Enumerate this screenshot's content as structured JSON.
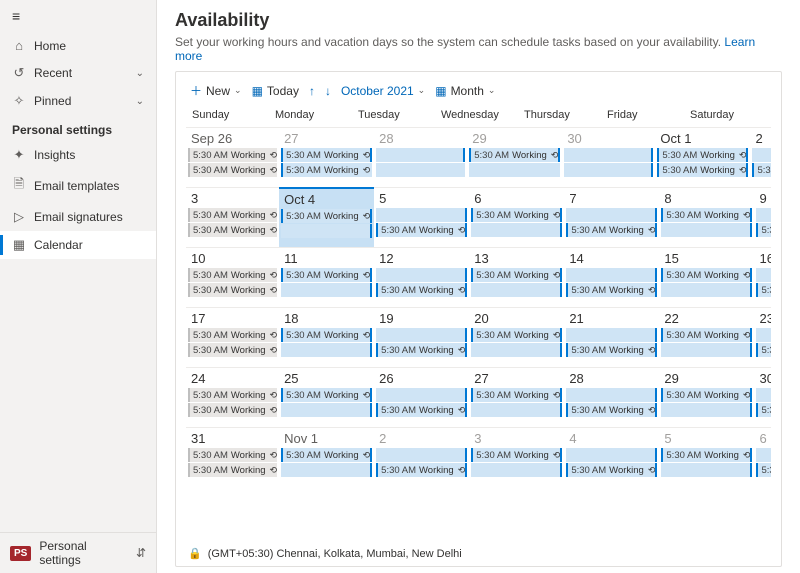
{
  "sidebar": {
    "items": [
      {
        "icon": "⌂",
        "label": "Home",
        "chev": ""
      },
      {
        "icon": "↺",
        "label": "Recent",
        "chev": "⌄"
      },
      {
        "icon": "✧",
        "label": "Pinned",
        "chev": "⌄"
      }
    ],
    "section_label": "Personal settings",
    "personal": [
      {
        "icon": "✦",
        "label": "Insights"
      },
      {
        "icon": "🗎",
        "label": "Email templates"
      },
      {
        "icon": "▷",
        "label": "Email signatures"
      },
      {
        "icon": "▦",
        "label": "Calendar"
      }
    ],
    "active_index": 3,
    "footer": {
      "badge": "PS",
      "label": "Personal settings",
      "updown": "⇵"
    }
  },
  "header": {
    "title": "Availability",
    "subtitle": "Set your working hours and vacation days so the system can schedule tasks based on your availability.",
    "learn_more": "Learn more"
  },
  "toolbar": {
    "new_label": "New",
    "today_label": "Today",
    "period": "October 2021",
    "view_label": "Month"
  },
  "calendar": {
    "dow": [
      "Sunday",
      "Monday",
      "Tuesday",
      "Wednesday",
      "Thursday",
      "Friday",
      "Saturday"
    ],
    "event_time": "5:30 AM",
    "event_label": "Working",
    "recur_glyph": "⟲",
    "weeks": [
      [
        {
          "d": "Sep 26",
          "other": true,
          "rows": [
            [
              "g",
              "s"
            ],
            [
              "g",
              "s"
            ]
          ]
        },
        {
          "d": "27",
          "other": true,
          "rows": [
            [
              "s",
              "e"
            ],
            [
              "s",
              "c"
            ]
          ]
        },
        {
          "d": "28",
          "other": true,
          "rows": [
            [
              "c",
              "e"
            ],
            [
              "c",
              "c"
            ]
          ]
        },
        {
          "d": "29",
          "other": true,
          "rows": [
            [
              "s",
              "e"
            ],
            [
              "c",
              "c"
            ]
          ]
        },
        {
          "d": "30",
          "other": true,
          "rows": [
            [
              "c",
              "e"
            ],
            [
              "c",
              "e"
            ]
          ]
        },
        {
          "d": "Oct 1",
          "rows": [
            [
              "s",
              "e"
            ],
            [
              "s",
              "e"
            ]
          ]
        },
        {
          "d": "2",
          "rows": [
            [
              "c",
              "e"
            ],
            [
              "s",
              "e"
            ]
          ]
        }
      ],
      [
        {
          "d": "3",
          "rows": [
            [
              "g",
              "s"
            ],
            [
              "g",
              "s"
            ]
          ]
        },
        {
          "d": "Oct 4",
          "today": true,
          "rows": [
            [
              "s",
              "e"
            ],
            [
              "c",
              "e"
            ]
          ]
        },
        {
          "d": "5",
          "rows": [
            [
              "c",
              "e"
            ],
            [
              "s",
              "e"
            ]
          ]
        },
        {
          "d": "6",
          "rows": [
            [
              "s",
              "e"
            ],
            [
              "c",
              "e"
            ]
          ]
        },
        {
          "d": "7",
          "rows": [
            [
              "c",
              "e"
            ],
            [
              "s",
              "e"
            ]
          ]
        },
        {
          "d": "8",
          "rows": [
            [
              "s",
              "e"
            ],
            [
              "c",
              "e"
            ]
          ]
        },
        {
          "d": "9",
          "rows": [
            [
              "c",
              "e"
            ],
            [
              "s",
              "e"
            ]
          ]
        }
      ],
      [
        {
          "d": "10",
          "rows": [
            [
              "g",
              "s"
            ],
            [
              "g",
              "s"
            ]
          ]
        },
        {
          "d": "11",
          "rows": [
            [
              "s",
              "e"
            ],
            [
              "c",
              "e"
            ]
          ]
        },
        {
          "d": "12",
          "rows": [
            [
              "c",
              "e"
            ],
            [
              "s",
              "e"
            ]
          ]
        },
        {
          "d": "13",
          "rows": [
            [
              "s",
              "e"
            ],
            [
              "c",
              "e"
            ]
          ]
        },
        {
          "d": "14",
          "rows": [
            [
              "c",
              "e"
            ],
            [
              "s",
              "e"
            ]
          ]
        },
        {
          "d": "15",
          "rows": [
            [
              "s",
              "e"
            ],
            [
              "c",
              "e"
            ]
          ]
        },
        {
          "d": "16",
          "rows": [
            [
              "c",
              "e"
            ],
            [
              "s",
              "e"
            ]
          ]
        }
      ],
      [
        {
          "d": "17",
          "rows": [
            [
              "g",
              "s"
            ],
            [
              "g",
              "s"
            ]
          ]
        },
        {
          "d": "18",
          "rows": [
            [
              "s",
              "e"
            ],
            [
              "c",
              "e"
            ]
          ]
        },
        {
          "d": "19",
          "rows": [
            [
              "c",
              "e"
            ],
            [
              "s",
              "e"
            ]
          ]
        },
        {
          "d": "20",
          "rows": [
            [
              "s",
              "e"
            ],
            [
              "c",
              "e"
            ]
          ]
        },
        {
          "d": "21",
          "rows": [
            [
              "c",
              "e"
            ],
            [
              "s",
              "e"
            ]
          ]
        },
        {
          "d": "22",
          "rows": [
            [
              "s",
              "e"
            ],
            [
              "c",
              "e"
            ]
          ]
        },
        {
          "d": "23",
          "rows": [
            [
              "c",
              "e"
            ],
            [
              "s",
              "e"
            ]
          ]
        }
      ],
      [
        {
          "d": "24",
          "rows": [
            [
              "g",
              "s"
            ],
            [
              "g",
              "s"
            ]
          ]
        },
        {
          "d": "25",
          "rows": [
            [
              "s",
              "e"
            ],
            [
              "c",
              "e"
            ]
          ]
        },
        {
          "d": "26",
          "rows": [
            [
              "c",
              "e"
            ],
            [
              "s",
              "e"
            ]
          ]
        },
        {
          "d": "27",
          "rows": [
            [
              "s",
              "e"
            ],
            [
              "c",
              "e"
            ]
          ]
        },
        {
          "d": "28",
          "rows": [
            [
              "c",
              "e"
            ],
            [
              "s",
              "e"
            ]
          ]
        },
        {
          "d": "29",
          "rows": [
            [
              "s",
              "e"
            ],
            [
              "c",
              "e"
            ]
          ]
        },
        {
          "d": "30",
          "rows": [
            [
              "c",
              "e"
            ],
            [
              "s",
              "e"
            ]
          ]
        }
      ],
      [
        {
          "d": "31",
          "rows": [
            [
              "g",
              "s"
            ],
            [
              "g",
              "s"
            ]
          ]
        },
        {
          "d": "Nov 1",
          "other": true,
          "rows": [
            [
              "s",
              "e"
            ],
            [
              "c",
              "e"
            ]
          ]
        },
        {
          "d": "2",
          "other": true,
          "rows": [
            [
              "c",
              "e"
            ],
            [
              "s",
              "e"
            ]
          ]
        },
        {
          "d": "3",
          "other": true,
          "rows": [
            [
              "s",
              "e"
            ],
            [
              "c",
              "e"
            ]
          ]
        },
        {
          "d": "4",
          "other": true,
          "rows": [
            [
              "c",
              "e"
            ],
            [
              "s",
              "e"
            ]
          ]
        },
        {
          "d": "5",
          "other": true,
          "rows": [
            [
              "s",
              "e"
            ],
            [
              "c",
              "e"
            ]
          ]
        },
        {
          "d": "6",
          "other": true,
          "rows": [
            [
              "c",
              "e"
            ],
            [
              "s",
              "e"
            ]
          ]
        }
      ]
    ]
  },
  "timezone": "(GMT+05:30) Chennai, Kolkata, Mumbai, New Delhi"
}
